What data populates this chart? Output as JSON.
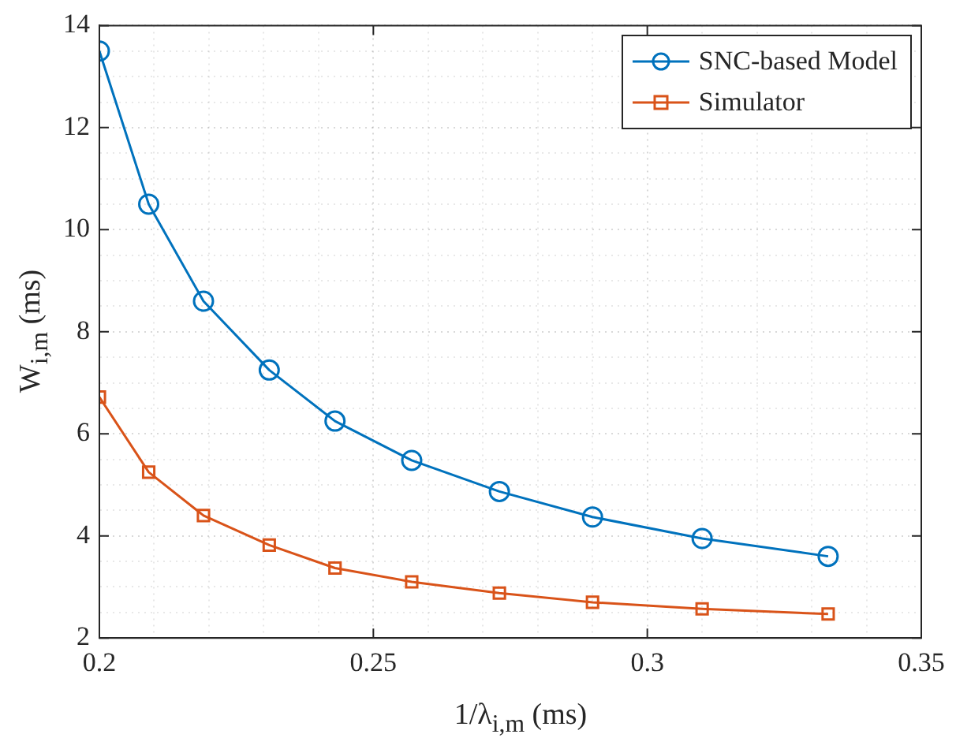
{
  "chart_data": {
    "type": "line",
    "xlabel": "1/λ$_{i,m}$ (ms)",
    "ylabel": "W$_{i,m}$ (ms)",
    "x": [
      0.2,
      0.209,
      0.219,
      0.231,
      0.243,
      0.257,
      0.273,
      0.29,
      0.31,
      0.333
    ],
    "series": [
      {
        "name": "SNC-based Model",
        "color": "#0072bd",
        "marker": "circle",
        "values": [
          13.5,
          10.5,
          8.6,
          7.25,
          6.25,
          5.48,
          4.87,
          4.37,
          3.95,
          3.6
        ]
      },
      {
        "name": "Simulator",
        "color": "#d95319",
        "marker": "square",
        "values": [
          6.72,
          5.25,
          4.4,
          3.82,
          3.37,
          3.1,
          2.88,
          2.7,
          2.57,
          2.47
        ]
      }
    ],
    "xlim": [
      0.2,
      0.35
    ],
    "xticks": [
      0.2,
      {
        "value": 0.21,
        "label": null
      },
      {
        "value": 0.22,
        "label": null
      },
      {
        "value": 0.23,
        "label": null
      },
      {
        "value": 0.24,
        "label": null
      },
      0.25,
      {
        "value": 0.26,
        "label": null
      },
      {
        "value": 0.27,
        "label": null
      },
      {
        "value": 0.28,
        "label": null
      },
      {
        "value": 0.29,
        "label": null
      },
      0.3,
      {
        "value": 0.31,
        "label": null
      },
      {
        "value": 0.32,
        "label": null
      },
      {
        "value": 0.33,
        "label": null
      },
      {
        "value": 0.34,
        "label": null
      },
      0.35
    ],
    "ylim": [
      2,
      14
    ],
    "yticks": [
      2,
      {
        "value": 2.5,
        "label": null
      },
      {
        "value": 3,
        "label": null
      },
      {
        "value": 3.5,
        "label": null
      },
      4,
      {
        "value": 4.5,
        "label": null
      },
      {
        "value": 5,
        "label": null
      },
      {
        "value": 5.5,
        "label": null
      },
      6,
      {
        "value": 6.5,
        "label": null
      },
      {
        "value": 7,
        "label": null
      },
      {
        "value": 7.5,
        "label": null
      },
      8,
      {
        "value": 8.5,
        "label": null
      },
      {
        "value": 9,
        "label": null
      },
      {
        "value": 9.5,
        "label": null
      },
      10,
      {
        "value": 10.5,
        "label": null
      },
      {
        "value": 11,
        "label": null
      },
      {
        "value": 11.5,
        "label": null
      },
      12,
      {
        "value": 12.5,
        "label": null
      },
      {
        "value": 13,
        "label": null
      },
      {
        "value": 13.5,
        "label": null
      },
      14
    ],
    "grid": true,
    "legend": "top right",
    "line_style": "solid"
  }
}
